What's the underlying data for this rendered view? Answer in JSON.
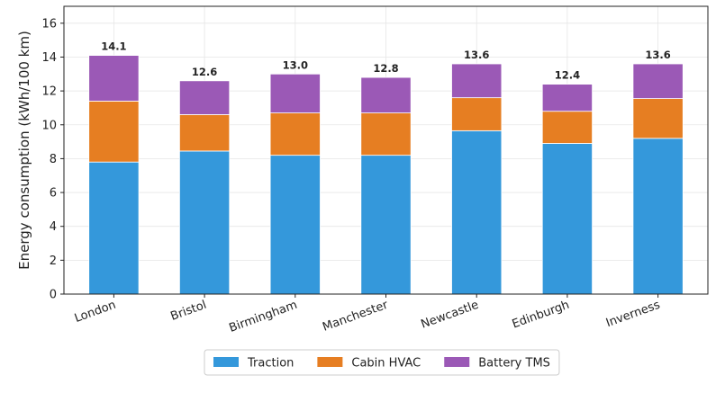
{
  "chart_data": {
    "type": "bar",
    "stacked": true,
    "categories": [
      "London",
      "Bristol",
      "Birmingham",
      "Manchester",
      "Newcastle",
      "Edinburgh",
      "Inverness"
    ],
    "series": [
      {
        "name": "Traction",
        "color": "#3498db",
        "values": [
          7.8,
          8.45,
          8.2,
          8.2,
          9.65,
          8.9,
          9.2
        ]
      },
      {
        "name": "Cabin HVAC",
        "color": "#e67e22",
        "values": [
          3.6,
          2.15,
          2.5,
          2.5,
          1.95,
          1.9,
          2.35
        ]
      },
      {
        "name": "Battery TMS",
        "color": "#9b59b6",
        "values": [
          2.7,
          2.0,
          2.3,
          2.1,
          2.0,
          1.6,
          2.05
        ]
      }
    ],
    "totals": [
      "14.1",
      "12.6",
      "13.0",
      "12.8",
      "13.6",
      "12.4",
      "13.6"
    ],
    "ylabel": "Energy consumption (kWh/100 km)",
    "ylim": [
      0,
      17
    ],
    "yticks": [
      0,
      2,
      4,
      6,
      8,
      10,
      12,
      14,
      16
    ],
    "grid": true,
    "legend_position": "bottom-center"
  }
}
